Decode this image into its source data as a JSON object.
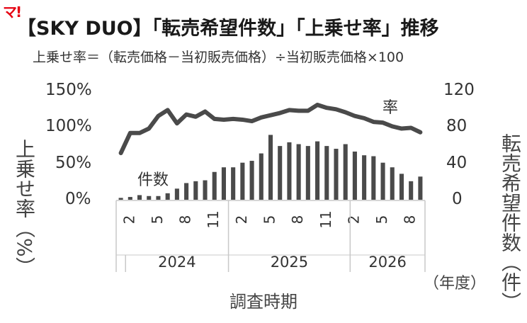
{
  "logo_text": "マ!",
  "title": "【SKY DUO】「転売希望件数」「上乗せ率」推移",
  "subtitle": "上乗せ率＝（転売価格－当初販売価格）÷当初販売価格×100",
  "left_axis_label": "上乗せ率（%）",
  "right_axis_label": "転売希望件数（件）",
  "x_axis_label": "調査時期",
  "x_unit_label": "（年度）",
  "annotation_rate": "率",
  "annotation_count": "件数",
  "colors": {
    "line": "#4a4a4a",
    "bars": "#4a4a4a",
    "axis": "#c8c8c8"
  },
  "chart_data": {
    "type": "bar+line",
    "x_index": [
      1,
      2,
      3,
      4,
      5,
      6,
      7,
      8,
      9,
      10,
      11,
      12,
      13,
      14,
      15,
      16,
      17,
      18,
      19,
      20,
      21,
      22,
      23,
      24,
      25,
      26,
      27,
      28,
      29,
      30,
      31,
      32,
      33,
      34,
      35,
      36,
      37,
      38,
      39,
      40,
      41,
      42,
      43,
      44,
      45,
      46,
      47,
      48,
      49,
      50,
      51,
      52,
      53,
      54,
      55,
      56,
      57,
      58,
      59,
      60,
      61,
      62,
      63,
      64,
      65,
      66,
      67,
      68,
      69,
      70,
      71,
      72,
      73,
      74,
      75,
      76,
      77,
      78,
      79,
      80
    ],
    "month_tick_labels": [
      {
        "x": 2,
        "label": "2"
      },
      {
        "x": 5,
        "label": "5"
      },
      {
        "x": 8,
        "label": "8"
      },
      {
        "x": 11,
        "label": "11"
      },
      {
        "x": 14,
        "label": "2"
      },
      {
        "x": 17,
        "label": "5"
      },
      {
        "x": 20,
        "label": "8"
      },
      {
        "x": 23,
        "label": "11"
      },
      {
        "x": 26,
        "label": "2"
      },
      {
        "x": 29,
        "label": "5"
      },
      {
        "x": 32,
        "label": "8"
      }
    ],
    "month_ticks_x": [
      2,
      5,
      8,
      11,
      14,
      17,
      20,
      23,
      26,
      29,
      32
    ],
    "year_labels": [
      {
        "label": "2024",
        "from": 1,
        "to": 16
      },
      {
        "label": "2025",
        "from": 17,
        "to": 28
      },
      {
        "label": "2026",
        "from": 29,
        "to": 36
      }
    ],
    "bars_x": [
      1,
      2,
      3,
      4,
      5,
      6,
      7,
      8,
      9,
      10,
      11,
      12,
      13,
      14,
      15,
      16,
      17,
      18,
      19,
      20,
      21,
      22,
      23,
      24,
      25,
      26,
      27,
      28,
      29,
      30,
      31,
      32,
      33
    ],
    "series": [
      {
        "name": "件数",
        "axis": "right",
        "type": "bar",
        "values": [
          2,
          3,
          5,
          4,
          4,
          7,
          12,
          18,
          20,
          21,
          30,
          35,
          35,
          40,
          42,
          50,
          70,
          58,
          62,
          60,
          58,
          63,
          58,
          55,
          60,
          52,
          48,
          47,
          40,
          35,
          28,
          20,
          25
        ]
      },
      {
        "name": "率",
        "axis": "left",
        "type": "line",
        "values": [
          63,
          90,
          90,
          96,
          113,
          121,
          103,
          115,
          112,
          119,
          109,
          108,
          109,
          108,
          106,
          111,
          114,
          117,
          121,
          120,
          120,
          128,
          124,
          122,
          118,
          113,
          110,
          105,
          104,
          99,
          96,
          97,
          91
        ]
      }
    ],
    "left_axis": {
      "min": 0,
      "max": 150,
      "ticks": [
        0,
        50,
        100,
        150
      ],
      "tick_labels": [
        "0%",
        "50%",
        "100%",
        "150%"
      ]
    },
    "right_axis": {
      "min": 0,
      "max": 120,
      "ticks": [
        0,
        40,
        80,
        120
      ],
      "tick_labels": [
        "0",
        "40",
        "80",
        "120"
      ]
    },
    "grid": false,
    "legend": "none"
  }
}
